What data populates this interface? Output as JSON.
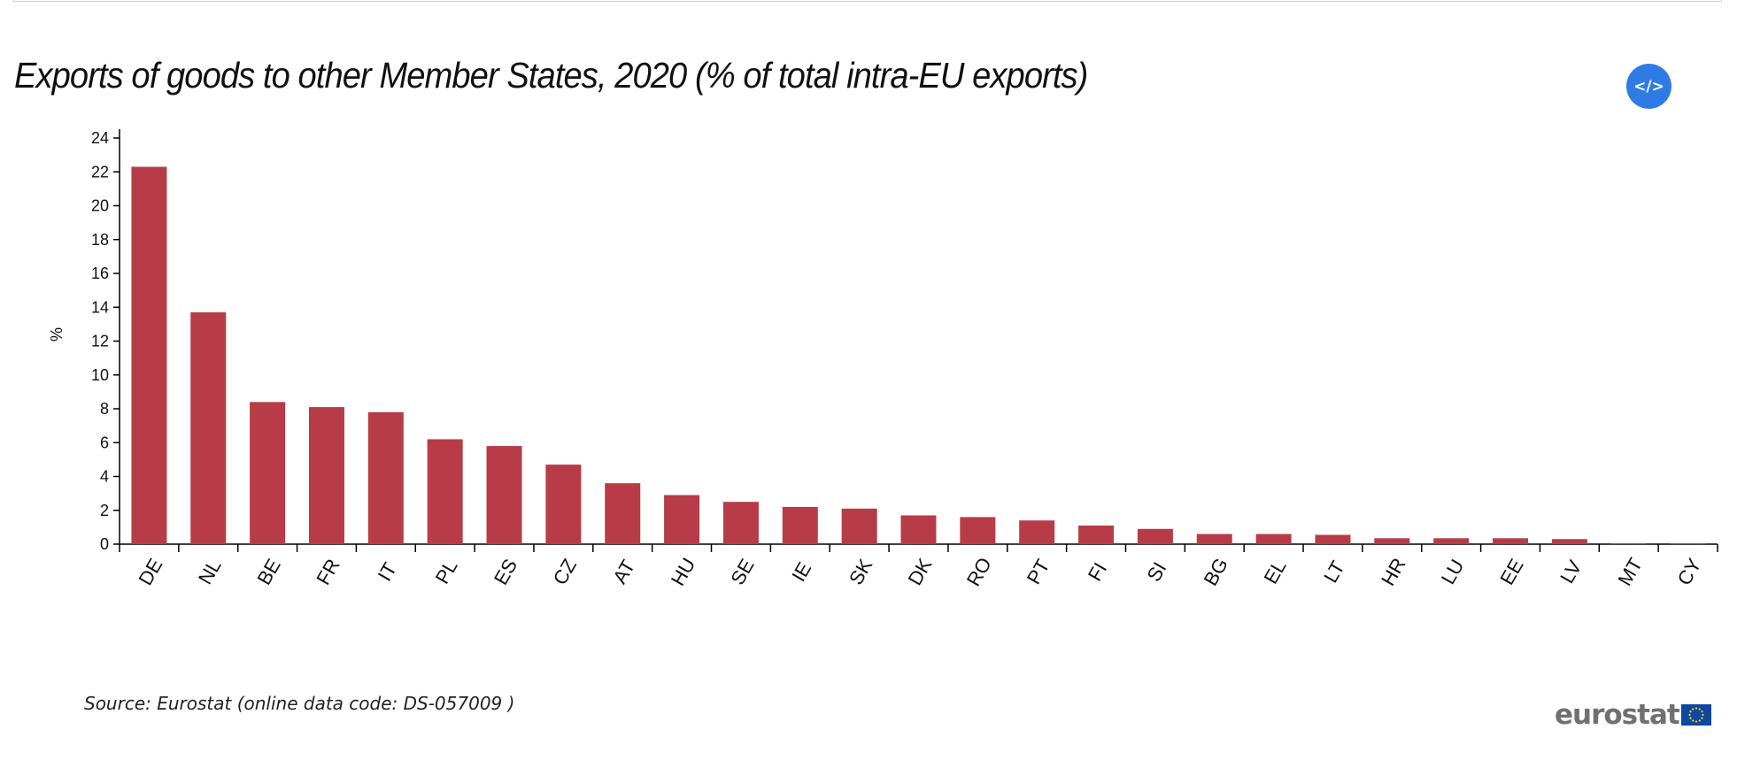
{
  "title": "Exports of goods to other Member States, 2020 (% of total intra-EU exports)",
  "embed_button_label": "</>",
  "source_text": "Source: Eurostat (online data code: DS-057009 )",
  "logo_text": "eurostat",
  "colors": {
    "bar": "#b73c48",
    "accent": "#2f7be6"
  },
  "chart_data": {
    "type": "bar",
    "ylabel": "%",
    "xlabel": "",
    "ylim": [
      0,
      24
    ],
    "yticks": [
      0,
      2,
      4,
      6,
      8,
      10,
      12,
      14,
      16,
      18,
      20,
      22,
      24
    ],
    "categories": [
      "DE",
      "NL",
      "BE",
      "FR",
      "IT",
      "PL",
      "ES",
      "CZ",
      "AT",
      "HU",
      "SE",
      "IE",
      "SK",
      "DK",
      "RO",
      "PT",
      "FI",
      "SI",
      "BG",
      "EL",
      "LT",
      "HR",
      "LU",
      "EE",
      "LV",
      "MT",
      "CY"
    ],
    "values": [
      22.3,
      13.7,
      8.4,
      8.1,
      7.8,
      6.2,
      5.8,
      4.7,
      3.6,
      2.9,
      2.5,
      2.2,
      2.1,
      1.7,
      1.6,
      1.4,
      1.1,
      0.9,
      0.6,
      0.6,
      0.55,
      0.35,
      0.35,
      0.35,
      0.3,
      0.05,
      0.05
    ]
  }
}
